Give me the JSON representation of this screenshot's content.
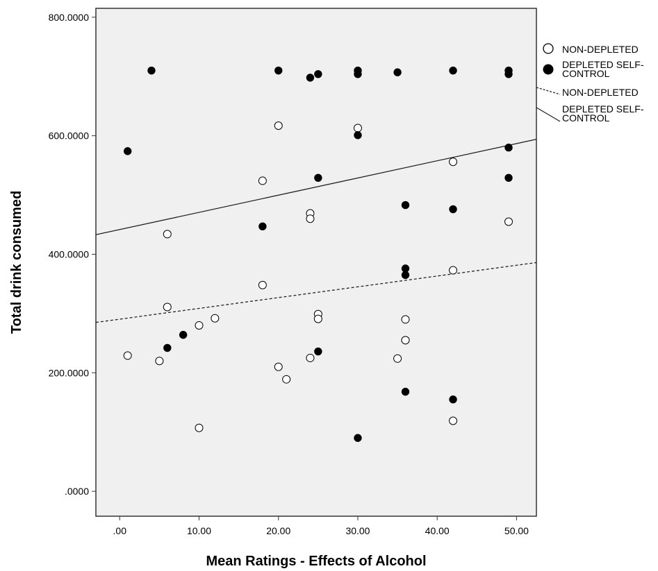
{
  "chart_data": {
    "type": "scatter",
    "title": "",
    "xlabel": "Mean Ratings - Effects of Alcohol",
    "ylabel": "Total drink consumed",
    "xlim": [
      -3,
      52.5
    ],
    "ylim": [
      -42,
      815
    ],
    "x_ticks": [
      0,
      10,
      20,
      30,
      40,
      50
    ],
    "x_tick_labels": [
      ".00",
      "10.00",
      "20.00",
      "30.00",
      "40.00",
      "50.00"
    ],
    "y_ticks": [
      0,
      200,
      400,
      600,
      800
    ],
    "y_tick_labels": [
      ".0000",
      "200.0000",
      "400.0000",
      "600.0000",
      "800.0000"
    ],
    "plot_background": "#f0f0f0",
    "grid": false,
    "legend_position": "right-top",
    "series": [
      {
        "name": "NON-DEPLETED",
        "marker": "open-circle",
        "color": "#000000",
        "points": [
          [
            1,
            229
          ],
          [
            5,
            220
          ],
          [
            6,
            434
          ],
          [
            6,
            311
          ],
          [
            10,
            107
          ],
          [
            10,
            280
          ],
          [
            12,
            292
          ],
          [
            18,
            524
          ],
          [
            18,
            348
          ],
          [
            20,
            617
          ],
          [
            20,
            210
          ],
          [
            21,
            189
          ],
          [
            24,
            469
          ],
          [
            24,
            460
          ],
          [
            24,
            225
          ],
          [
            25,
            299
          ],
          [
            25,
            291
          ],
          [
            30,
            613
          ],
          [
            35,
            224
          ],
          [
            36,
            290
          ],
          [
            36,
            255
          ],
          [
            36,
            255
          ],
          [
            42,
            556
          ],
          [
            42,
            373
          ],
          [
            42,
            119
          ],
          [
            49,
            455
          ]
        ]
      },
      {
        "name": "DEPLETED SELF-CONTROL",
        "marker": "filled-circle",
        "color": "#000000",
        "points": [
          [
            1,
            574
          ],
          [
            4,
            710
          ],
          [
            6,
            242
          ],
          [
            8,
            264
          ],
          [
            18,
            447
          ],
          [
            20,
            710
          ],
          [
            24,
            698
          ],
          [
            25,
            704
          ],
          [
            25,
            529
          ],
          [
            25,
            236
          ],
          [
            30,
            710
          ],
          [
            30,
            704
          ],
          [
            30,
            601
          ],
          [
            30,
            90
          ],
          [
            35,
            707
          ],
          [
            36,
            483
          ],
          [
            36,
            376
          ],
          [
            36,
            365
          ],
          [
            36,
            168
          ],
          [
            42,
            710
          ],
          [
            42,
            476
          ],
          [
            42,
            155
          ],
          [
            49,
            710
          ],
          [
            49,
            704
          ],
          [
            49,
            580
          ],
          [
            49,
            529
          ]
        ]
      }
    ],
    "fit_lines": [
      {
        "name": "NON-DEPLETED",
        "style": "dashed",
        "x": [
          -3,
          52.5
        ],
        "y": [
          285,
          386
        ]
      },
      {
        "name": "DEPLETED SELF-CONTROL",
        "style": "solid",
        "x": [
          -3,
          52.5
        ],
        "y": [
          433,
          594
        ]
      }
    ]
  },
  "legend": {
    "items": [
      {
        "type": "open-circle",
        "lines": [
          "NON-DEPLETED"
        ]
      },
      {
        "type": "filled-circle",
        "lines": [
          "DEPLETED SELF-",
          "CONTROL"
        ]
      },
      {
        "type": "dashed-line",
        "lines": [
          "NON-DEPLETED"
        ]
      },
      {
        "type": "solid-line",
        "lines": [
          "DEPLETED SELF-",
          "CONTROL"
        ]
      }
    ]
  }
}
